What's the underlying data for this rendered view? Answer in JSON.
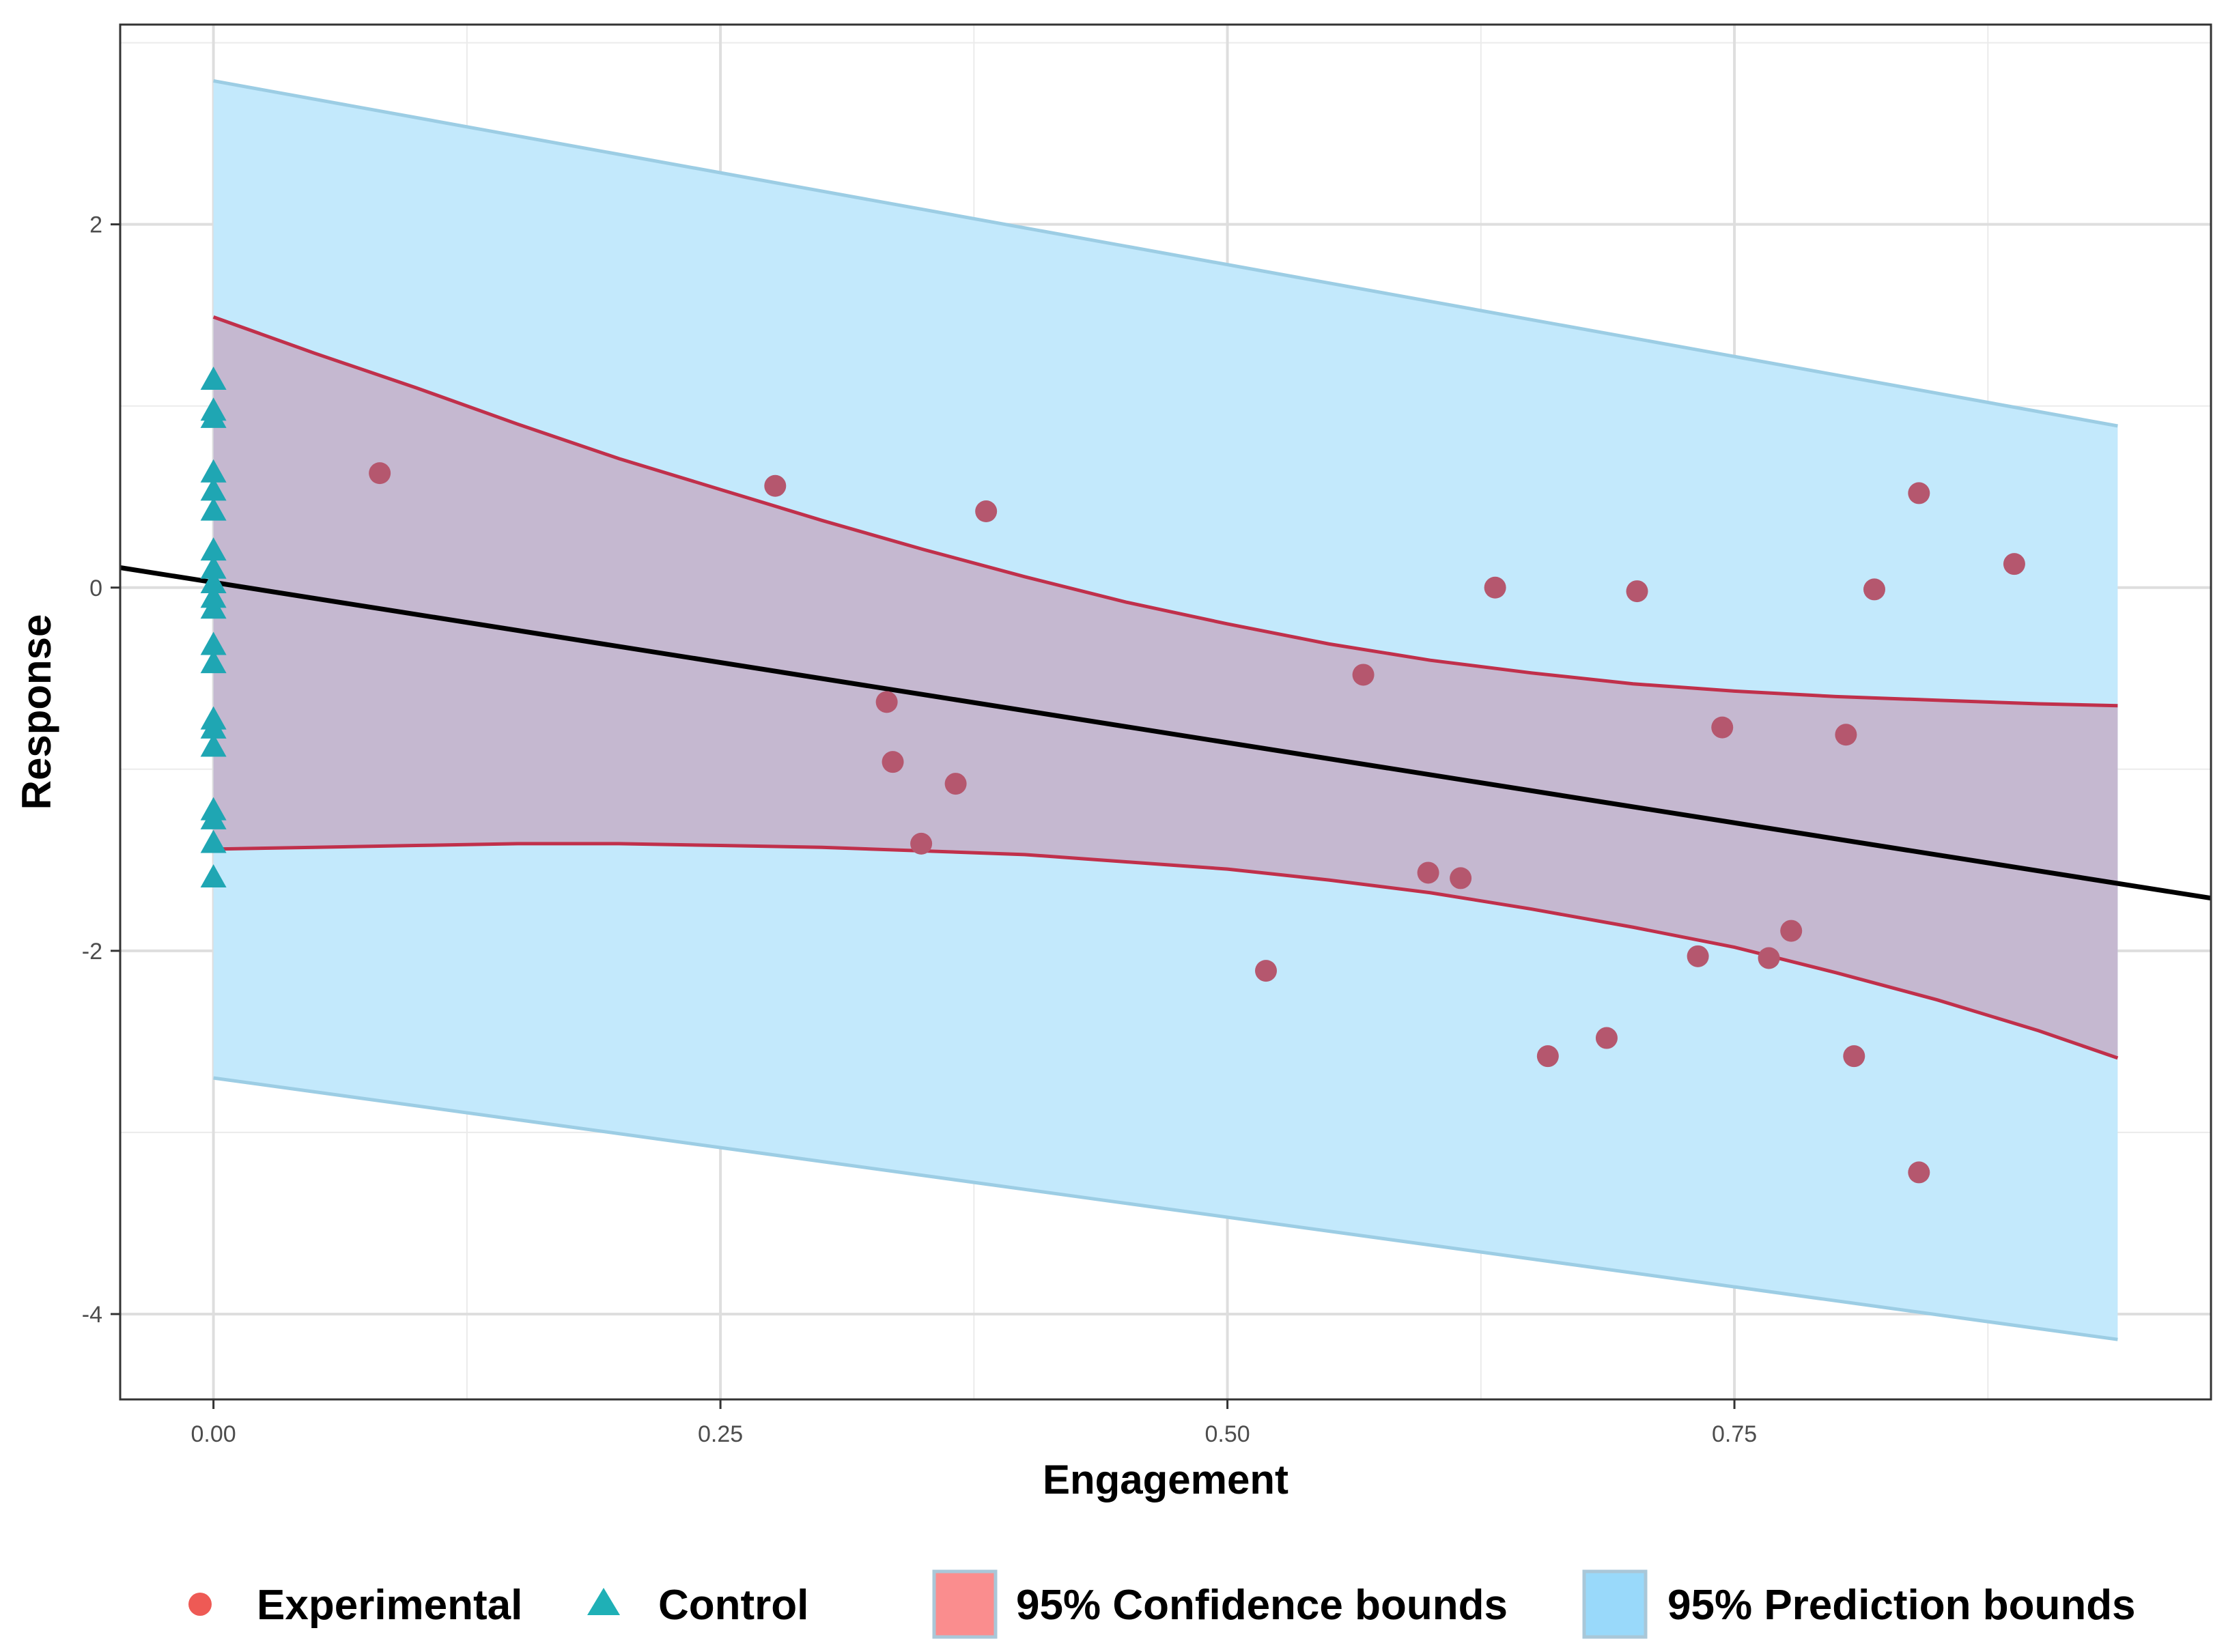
{
  "chart_data": {
    "type": "scatter",
    "xlabel": "Engagement",
    "ylabel": "Response",
    "xlim": [
      -0.046,
      0.985
    ],
    "ylim": [
      -4.47,
      3.1
    ],
    "x_ticks": [
      0.0,
      0.25,
      0.5,
      0.75
    ],
    "x_tick_labels": [
      "0.00",
      "0.25",
      "0.50",
      "0.75"
    ],
    "y_ticks": [
      -4,
      -2,
      0,
      2
    ],
    "y_tick_labels": [
      "-4",
      "-2",
      "0",
      "2"
    ],
    "grid": true,
    "series": [
      {
        "name": "Experimental",
        "marker": "circle",
        "color": "#b5576e",
        "points": [
          {
            "x": 0.082,
            "y": 0.63
          },
          {
            "x": 0.277,
            "y": 0.56
          },
          {
            "x": 0.381,
            "y": 0.42
          },
          {
            "x": 0.332,
            "y": -0.63
          },
          {
            "x": 0.335,
            "y": -0.96
          },
          {
            "x": 0.366,
            "y": -1.08
          },
          {
            "x": 0.349,
            "y": -1.41
          },
          {
            "x": 0.519,
            "y": -2.11
          },
          {
            "x": 0.567,
            "y": -0.48
          },
          {
            "x": 0.599,
            "y": -1.57
          },
          {
            "x": 0.615,
            "y": -1.6
          },
          {
            "x": 0.632,
            "y": 0.0
          },
          {
            "x": 0.658,
            "y": -2.58
          },
          {
            "x": 0.687,
            "y": -2.48
          },
          {
            "x": 0.702,
            "y": -0.02
          },
          {
            "x": 0.732,
            "y": -2.03
          },
          {
            "x": 0.744,
            "y": -0.77
          },
          {
            "x": 0.767,
            "y": -2.04
          },
          {
            "x": 0.778,
            "y": -1.89
          },
          {
            "x": 0.805,
            "y": -0.81
          },
          {
            "x": 0.809,
            "y": -2.58
          },
          {
            "x": 0.819,
            "y": -0.01
          },
          {
            "x": 0.841,
            "y": 0.52
          },
          {
            "x": 0.841,
            "y": -3.22
          },
          {
            "x": 0.888,
            "y": 0.13
          }
        ]
      },
      {
        "name": "Control",
        "marker": "triangle",
        "color": "#1fa6b3",
        "points": [
          {
            "x": 0.0,
            "y": 1.14
          },
          {
            "x": 0.0,
            "y": 0.97
          },
          {
            "x": 0.0,
            "y": 0.93
          },
          {
            "x": 0.0,
            "y": 0.63
          },
          {
            "x": 0.0,
            "y": 0.53
          },
          {
            "x": 0.0,
            "y": 0.42
          },
          {
            "x": 0.0,
            "y": 0.2
          },
          {
            "x": 0.0,
            "y": 0.1
          },
          {
            "x": 0.0,
            "y": 0.02
          },
          {
            "x": 0.0,
            "y": -0.06
          },
          {
            "x": 0.0,
            "y": -0.12
          },
          {
            "x": 0.0,
            "y": -0.32
          },
          {
            "x": 0.0,
            "y": -0.42
          },
          {
            "x": 0.0,
            "y": -0.73
          },
          {
            "x": 0.0,
            "y": -0.78
          },
          {
            "x": 0.0,
            "y": -0.88
          },
          {
            "x": 0.0,
            "y": -1.23
          },
          {
            "x": 0.0,
            "y": -1.28
          },
          {
            "x": 0.0,
            "y": -1.41
          },
          {
            "x": 0.0,
            "y": -1.6
          }
        ]
      }
    ],
    "regression_line": {
      "x": [
        -0.046,
        0.985
      ],
      "y": [
        0.11,
        -1.71
      ],
      "color": "#000000"
    },
    "confidence_band": {
      "label": "95% Confidence bounds",
      "legend_color": "#fa8d8e",
      "fill_color": "#c5b8d0",
      "line_color": "#c0304b",
      "x": [
        0.0,
        0.05,
        0.1,
        0.15,
        0.2,
        0.25,
        0.3,
        0.35,
        0.4,
        0.45,
        0.5,
        0.55,
        0.6,
        0.65,
        0.7,
        0.75,
        0.8,
        0.85,
        0.9,
        0.939
      ],
      "upper": [
        1.49,
        1.29,
        1.1,
        0.9,
        0.71,
        0.54,
        0.37,
        0.21,
        0.06,
        -0.08,
        -0.2,
        -0.31,
        -0.4,
        -0.47,
        -0.53,
        -0.57,
        -0.6,
        -0.62,
        -0.64,
        -0.65
      ],
      "lower": [
        -1.44,
        -1.43,
        -1.42,
        -1.41,
        -1.41,
        -1.42,
        -1.43,
        -1.45,
        -1.47,
        -1.51,
        -1.55,
        -1.61,
        -1.68,
        -1.77,
        -1.87,
        -1.98,
        -2.12,
        -2.27,
        -2.44,
        -2.59
      ]
    },
    "prediction_band": {
      "label": "95% Prediction bounds",
      "legend_color": "#99d9fa",
      "fill_color": "#c3e9fc",
      "line_color": "#9ccde4",
      "x": [
        0.0,
        0.939
      ],
      "upper": [
        2.79,
        0.89
      ],
      "lower": [
        -2.7,
        -4.14
      ]
    },
    "legend": {
      "position": "bottom",
      "items": [
        {
          "label": "Experimental",
          "symbol": "circle",
          "color": "#ee5a55"
        },
        {
          "label": "Control",
          "symbol": "triangle",
          "color": "#1fb0b6"
        },
        {
          "label": "95% Confidence bounds",
          "symbol": "box",
          "color": "#fa8d8e"
        },
        {
          "label": "95% Prediction bounds",
          "symbol": "box",
          "color": "#99d9fa"
        }
      ]
    }
  }
}
